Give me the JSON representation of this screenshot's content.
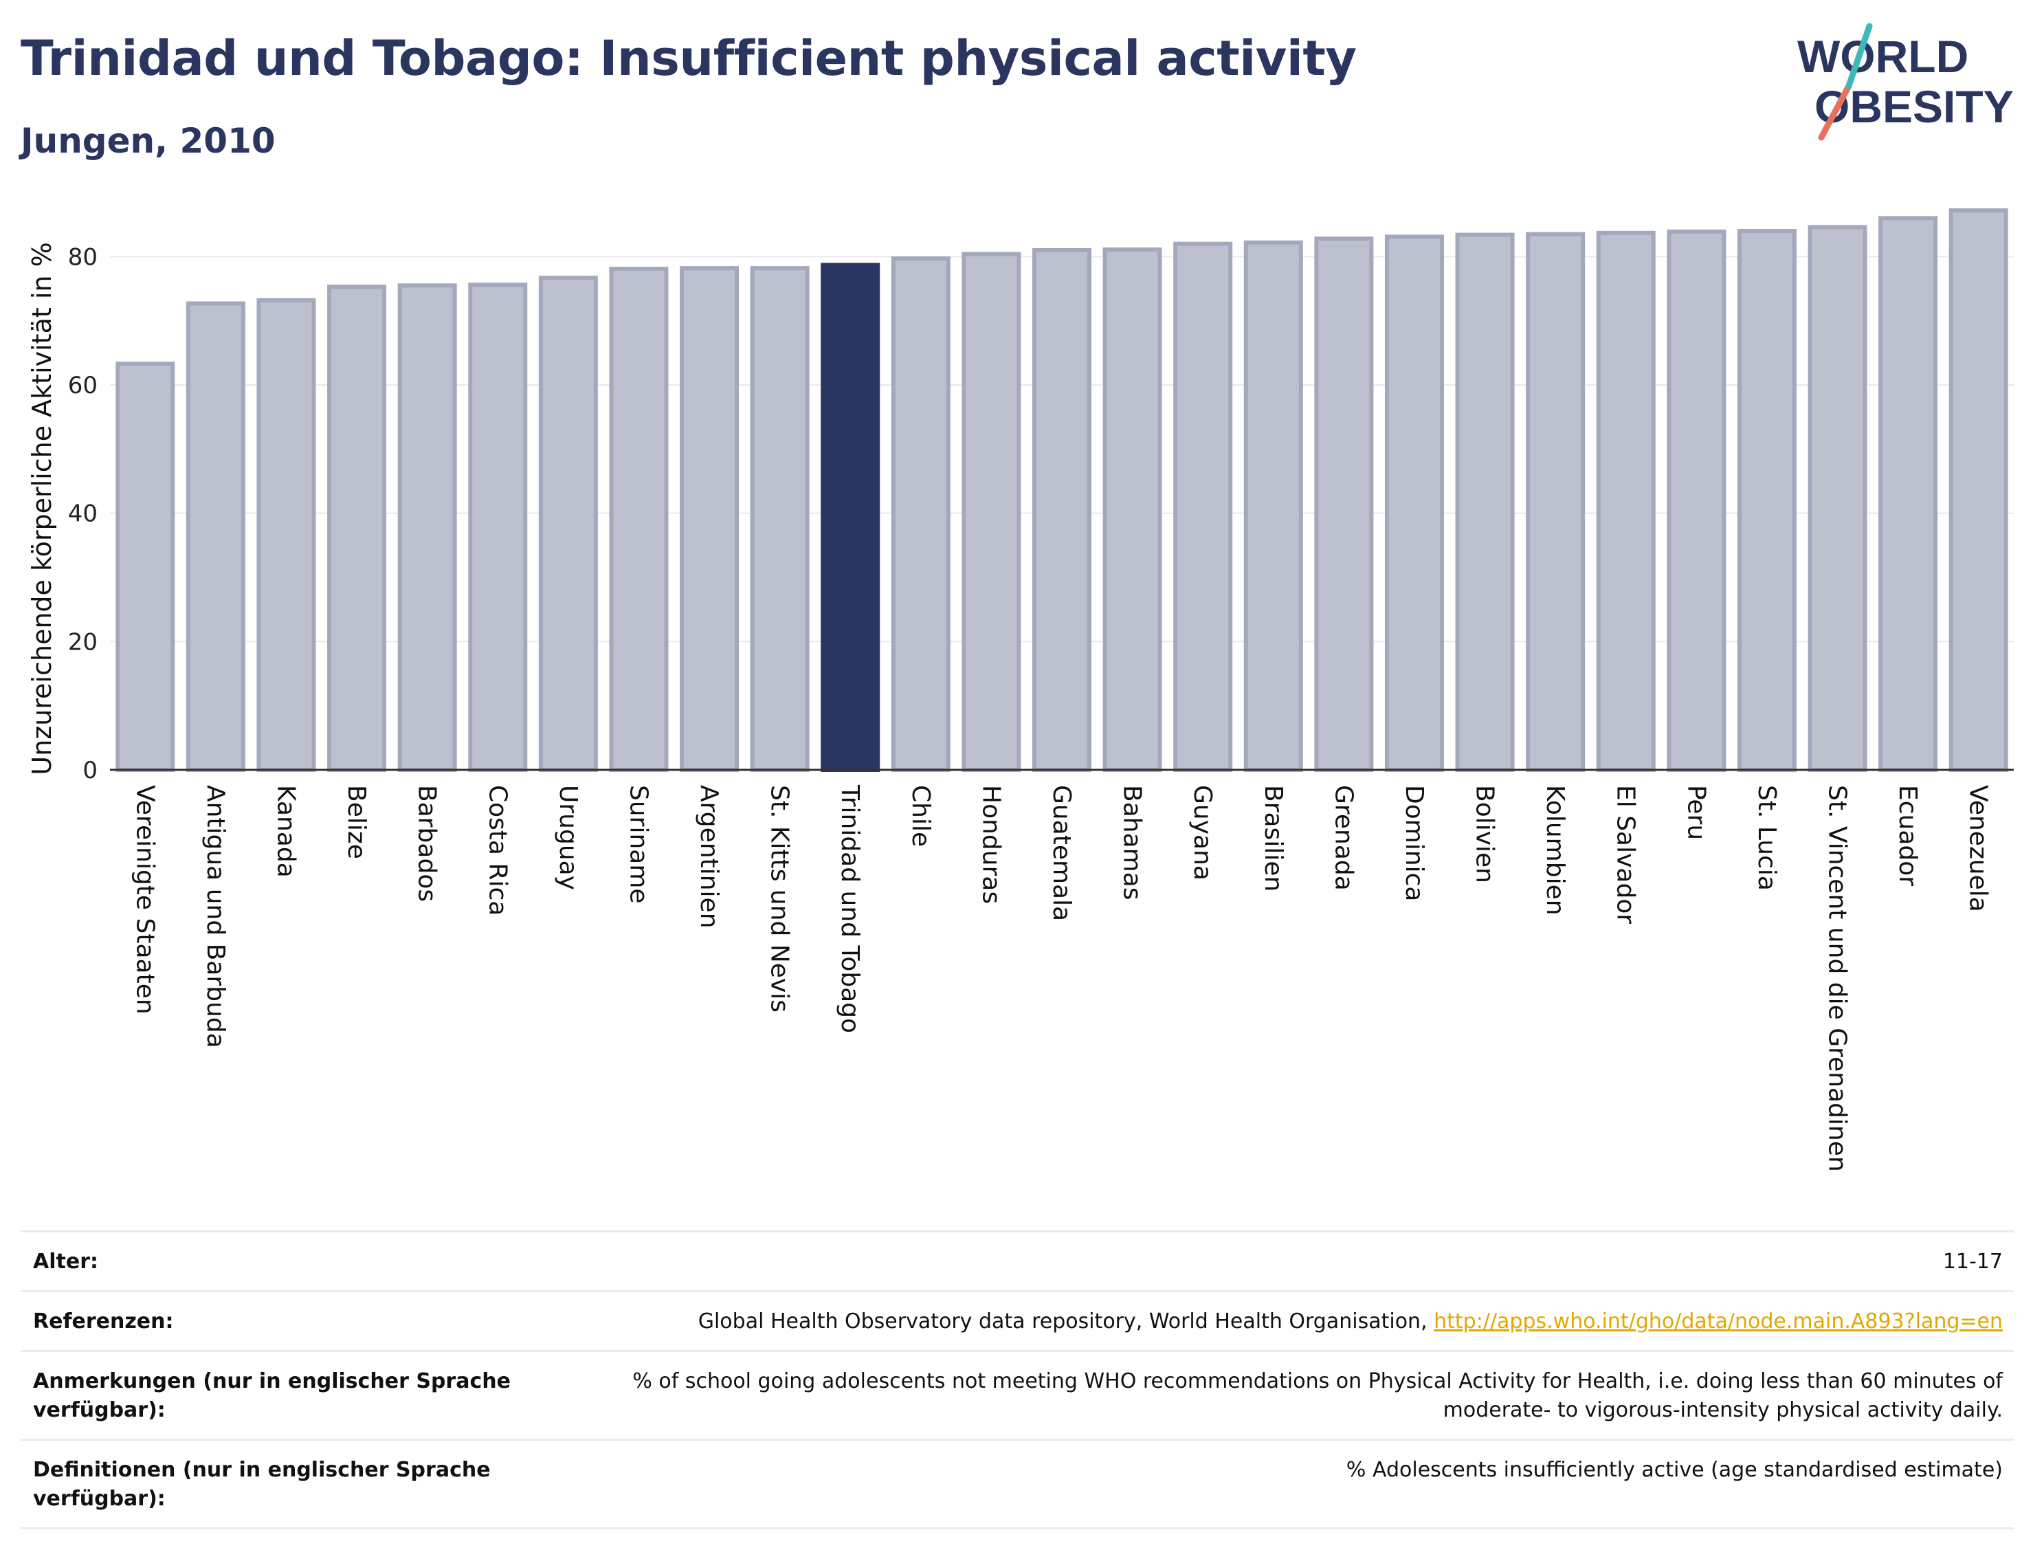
{
  "header": {
    "title": "Trinidad und Tobago: Insufficient physical activity",
    "subtitle": "Jungen, 2010"
  },
  "logo": {
    "line1": "WORLD",
    "line2": "OBESITY"
  },
  "colors": {
    "bar_default": "#bcc0cf",
    "bar_border": "#a3a8bd",
    "bar_highlight": "#2b3660",
    "axis": "#333333",
    "grid": "#e8e8ee"
  },
  "chart_data": {
    "type": "bar",
    "ylabel": "Unzureichende körperliche Aktivität in %",
    "ylim": [
      0,
      90
    ],
    "yticks": [
      0,
      20,
      40,
      60,
      80
    ],
    "grid": true,
    "highlight": "Trinidad und Tobago",
    "categories": [
      "Vereinigte Staaten",
      "Antigua und Barbuda",
      "Kanada",
      "Belize",
      "Barbados",
      "Costa Rica",
      "Uruguay",
      "Suriname",
      "Argentinien",
      "St. Kitts und Nevis",
      "Trinidad und Tobago",
      "Chile",
      "Honduras",
      "Guatemala",
      "Bahamas",
      "Guyana",
      "Brasilien",
      "Grenada",
      "Dominica",
      "Bolivien",
      "Kolumbien",
      "El Salvador",
      "Peru",
      "St. Lucia",
      "St. Vincent und die Grenadinen",
      "Ecuador",
      "Venezuela"
    ],
    "values": [
      63.3,
      72.7,
      73.2,
      75.3,
      75.5,
      75.6,
      76.7,
      78.1,
      78.2,
      78.2,
      78.7,
      79.7,
      80.4,
      81.0,
      81.1,
      82.0,
      82.2,
      82.8,
      83.1,
      83.4,
      83.5,
      83.7,
      83.9,
      84.0,
      84.6,
      86.0,
      87.2
    ]
  },
  "meta": [
    {
      "key": "Alter:",
      "value": "11-17"
    },
    {
      "key": "Referenzen:",
      "value": "Global Health Observatory data repository, World Health Organisation, ",
      "link": "http://apps.who.int/gho/data/node.main.A893?lang=en"
    },
    {
      "key": "Anmerkungen (nur in englischer Sprache verfügbar):",
      "value": "% of school going adolescents not meeting WHO recommendations on Physical Activity for Health, i.e. doing less than 60 minutes of moderate- to vigorous-intensity physical activity daily."
    },
    {
      "key": "Definitionen (nur in englischer Sprache verfügbar):",
      "value": "% Adolescents insufficiently active (age standardised estimate)"
    }
  ]
}
